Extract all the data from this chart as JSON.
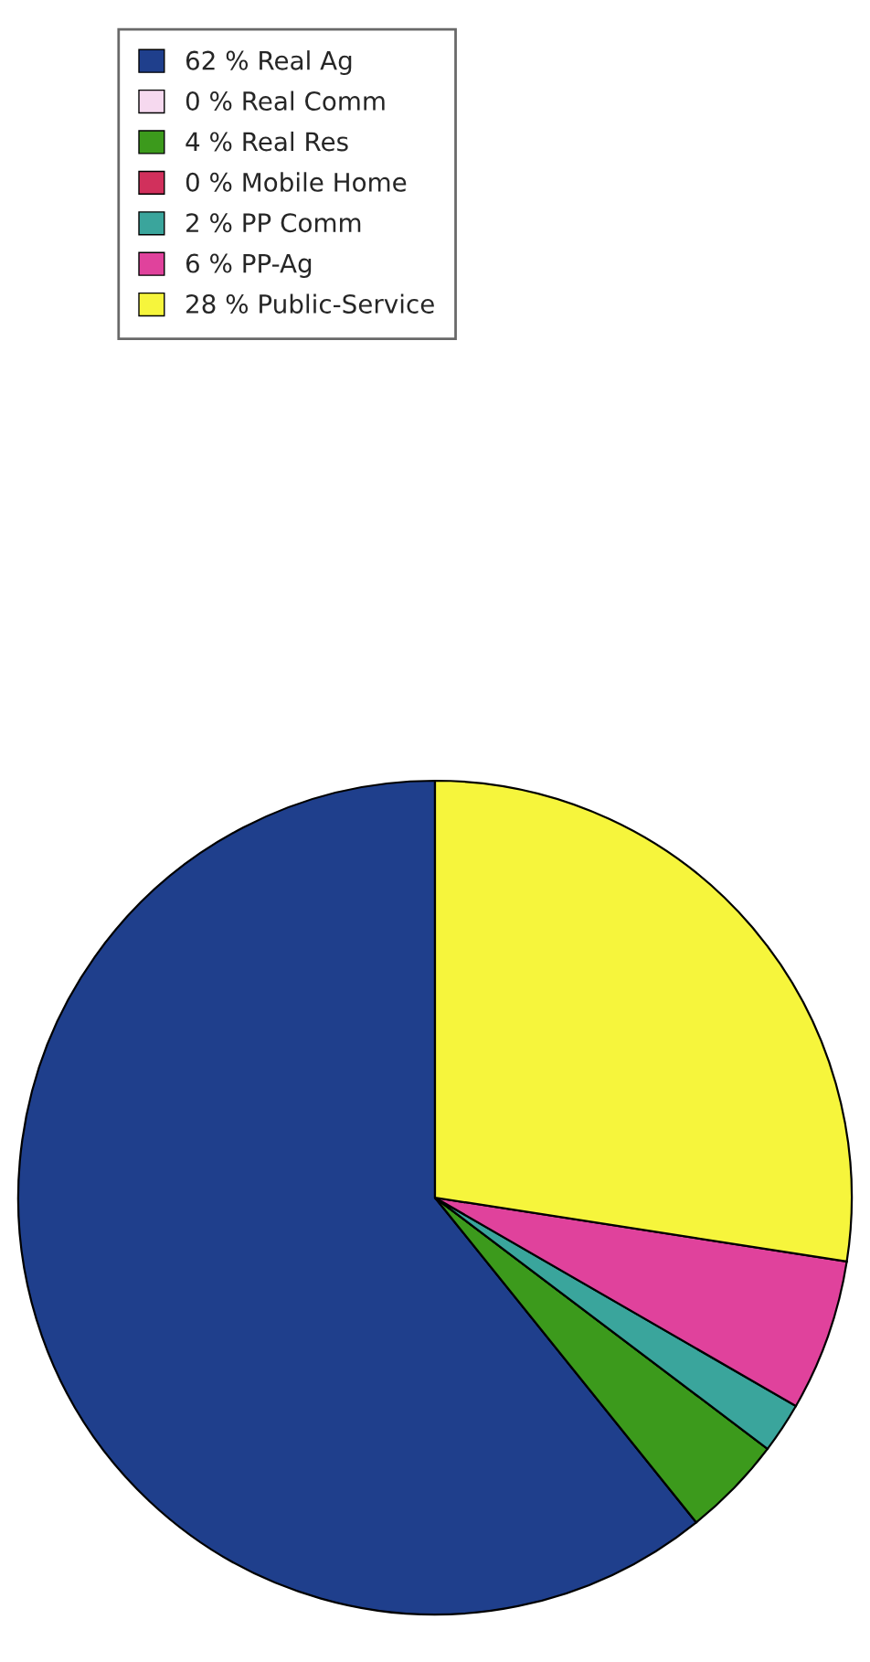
{
  "chart_data": {
    "type": "pie",
    "categories": [
      "Real Ag",
      "Real Comm",
      "Real Res",
      "Mobile Home",
      "PP Comm",
      "PP-Ag",
      "Public-Service"
    ],
    "values": [
      62,
      0,
      4,
      0,
      2,
      6,
      28
    ],
    "value_labels": [
      "62 %",
      "0 %",
      "4 %",
      "0 %",
      "2 %",
      "6 %",
      "28 %"
    ],
    "colors": [
      "#1f3f8c",
      "#f6d9ef",
      "#3c9a1c",
      "#d1305c",
      "#3aa59c",
      "#e0429c",
      "#f6f53c"
    ],
    "legend": "top"
  }
}
